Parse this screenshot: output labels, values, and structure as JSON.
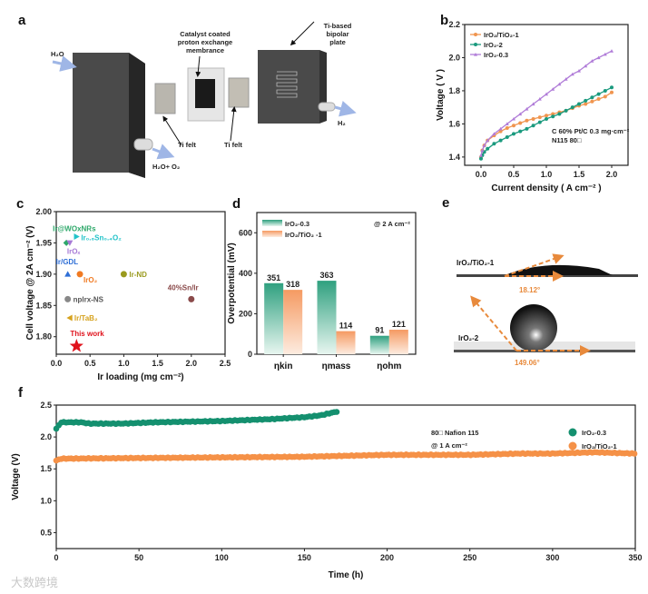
{
  "panels": {
    "a": "a",
    "b": "b",
    "c": "c",
    "d": "d",
    "e": "e",
    "f": "f"
  },
  "schematic": {
    "h2o_in": "H₂O",
    "h2o_o2_out": "H₂O+ O₂",
    "h2_out": "H₂",
    "membrane_label": [
      "Catalyst coated",
      "proton exchange",
      "membrance"
    ],
    "bipolar_label": [
      "Ti-based",
      "bipolar",
      "plate"
    ],
    "ti_felt_1": "Ti felt",
    "ti_felt_2": "Ti felt"
  },
  "contact_angle": {
    "top_label": "IrO₂/TiO₂-1",
    "top_angle": "18.12°",
    "bottom_label": "IrO₂-2",
    "bottom_angle": "149.06°",
    "arrow_color": "#e88a3c"
  },
  "watermark": "大数跨境",
  "chart_data": [
    {
      "id": "b",
      "type": "line",
      "xlabel": "Current density ( A cm⁻² )",
      "ylabel": "Voltage ( V )",
      "xlim": [
        -0.25,
        2.25
      ],
      "ylim": [
        1.35,
        2.2
      ],
      "xticks": [
        "0.0",
        "0.5",
        "1.0",
        "1.5",
        "2.0"
      ],
      "yticks": [
        "1.4",
        "1.6",
        "1.8",
        "2.0",
        "2.2"
      ],
      "annotation": [
        "C 60% Pt/C 0.3 mg·cm⁻²",
        "N115 80□"
      ],
      "legend": "top-left",
      "x": [
        0,
        0.02,
        0.05,
        0.1,
        0.2,
        0.3,
        0.4,
        0.5,
        0.6,
        0.7,
        0.8,
        0.9,
        1.0,
        1.1,
        1.2,
        1.3,
        1.4,
        1.5,
        1.6,
        1.7,
        1.8,
        1.9,
        2.0
      ],
      "series": [
        {
          "name": "IrO₂/TiO₂-1",
          "color": "#f0954f",
          "marker": "circle",
          "values": [
            1.4,
            1.44,
            1.47,
            1.5,
            1.53,
            1.555,
            1.575,
            1.59,
            1.605,
            1.62,
            1.63,
            1.64,
            1.65,
            1.66,
            1.67,
            1.68,
            1.695,
            1.71,
            1.72,
            1.735,
            1.75,
            1.765,
            1.79
          ]
        },
        {
          "name": "IrO₂-2",
          "color": "#1a9a7e",
          "marker": "circle",
          "values": [
            1.39,
            1.41,
            1.43,
            1.45,
            1.48,
            1.5,
            1.52,
            1.54,
            1.555,
            1.57,
            1.59,
            1.61,
            1.63,
            1.645,
            1.66,
            1.68,
            1.7,
            1.72,
            1.74,
            1.76,
            1.78,
            1.8,
            1.82
          ]
        },
        {
          "name": "IrO₂-0.3",
          "color": "#b07cd8",
          "marker": "triangle",
          "values": [
            1.41,
            1.44,
            1.47,
            1.5,
            1.54,
            1.57,
            1.6,
            1.63,
            1.66,
            1.69,
            1.72,
            1.75,
            1.78,
            1.81,
            1.84,
            1.87,
            1.9,
            1.92,
            1.95,
            1.98,
            2.0,
            2.02,
            2.04
          ]
        }
      ]
    },
    {
      "id": "c",
      "type": "scatter",
      "xlabel": "Ir loading (mg cm⁻²)",
      "ylabel": "Cell voltage @ 2A cm⁻² (V)",
      "xlim": [
        0,
        2.5
      ],
      "ylim": [
        1.772,
        2.0
      ],
      "xticks": [
        "0.0",
        "0.5",
        "1.0",
        "1.5",
        "2.0",
        "2.5"
      ],
      "yticks": [
        "1.80",
        "1.85",
        "1.90",
        "1.95",
        "2.00"
      ],
      "points": [
        {
          "name": "Ir@WOxNRs",
          "x": 0.15,
          "y": 1.95,
          "color": "#2ea86a",
          "marker": "diamond"
        },
        {
          "name": "Ir₀.₆Sn₀.₄O₂",
          "x": 0.3,
          "y": 1.96,
          "color": "#22c3c9",
          "marker": "tri-right"
        },
        {
          "name": "IrOₓ",
          "x": 0.2,
          "y": 1.95,
          "color": "#a77ad6",
          "marker": "tri-down"
        },
        {
          "name": "Ir/GDL",
          "x": 0.17,
          "y": 1.9,
          "color": "#2f6fd6",
          "marker": "tri-up"
        },
        {
          "name": "IrO₂",
          "x": 0.35,
          "y": 1.9,
          "color": "#f07a22",
          "marker": "circle"
        },
        {
          "name": "Ir-ND",
          "x": 1.0,
          "y": 1.9,
          "color": "#9a9a1e",
          "marker": "circle"
        },
        {
          "name": "40%Sn/Ir",
          "x": 2.0,
          "y": 1.86,
          "color": "#8a4a4a",
          "marker": "circle"
        },
        {
          "name": "nplrx-NS",
          "x": 0.17,
          "y": 1.86,
          "color": "#888888",
          "marker": "circle"
        },
        {
          "name": "Ir/TaB₂",
          "x": 0.2,
          "y": 1.83,
          "color": "#d6a21e",
          "marker": "tri-left"
        },
        {
          "name": "This work",
          "x": 0.3,
          "y": 1.785,
          "color": "#e0121c",
          "marker": "star"
        }
      ]
    },
    {
      "id": "d",
      "type": "bar",
      "ylabel": "Overpotential (mV)",
      "ylim": [
        0,
        700
      ],
      "yticks": [
        "0",
        "200",
        "400",
        "600"
      ],
      "categories": [
        "ηkin",
        "ηmass",
        "ηohm"
      ],
      "annotation": "@ 2 A cm⁻²",
      "legend": "top-left",
      "series": [
        {
          "name": "IrO₂-0.3",
          "color": "#2fa07f",
          "values": [
            351,
            363,
            91
          ]
        },
        {
          "name": "IrO₂/TiO₂ -1",
          "color": "#f59a62",
          "values": [
            318,
            114,
            121
          ]
        }
      ]
    },
    {
      "id": "f",
      "type": "scatter",
      "xlabel": "Time (h)",
      "ylabel": "Voltage (V)",
      "xlim": [
        0,
        350
      ],
      "ylim": [
        0.25,
        2.5
      ],
      "xticks": [
        "0",
        "50",
        "100",
        "150",
        "200",
        "250",
        "300",
        "350"
      ],
      "yticks": [
        "0.5",
        "1.0",
        "1.5",
        "2.0",
        "2.5"
      ],
      "annotation": [
        "80□  Nafion 115",
        "@ 1 A cm⁻²"
      ],
      "legend": "top-right",
      "series": [
        {
          "name": "IrO₂-0.3",
          "color": "#14906f",
          "anchors": [
            [
              0,
              2.13
            ],
            [
              3,
              2.23
            ],
            [
              15,
              2.23
            ],
            [
              20,
              2.21
            ],
            [
              40,
              2.21
            ],
            [
              60,
              2.23
            ],
            [
              100,
              2.25
            ],
            [
              130,
              2.28
            ],
            [
              150,
              2.31
            ],
            [
              160,
              2.34
            ],
            [
              170,
              2.4
            ]
          ]
        },
        {
          "name": "IrO₂/TiO₂-1",
          "color": "#f59147",
          "anchors": [
            [
              0,
              1.63
            ],
            [
              3,
              1.66
            ],
            [
              50,
              1.67
            ],
            [
              100,
              1.68
            ],
            [
              150,
              1.69
            ],
            [
              200,
              1.72
            ],
            [
              250,
              1.72
            ],
            [
              280,
              1.74
            ],
            [
              300,
              1.74
            ],
            [
              325,
              1.76
            ],
            [
              350,
              1.74
            ]
          ]
        }
      ]
    }
  ]
}
